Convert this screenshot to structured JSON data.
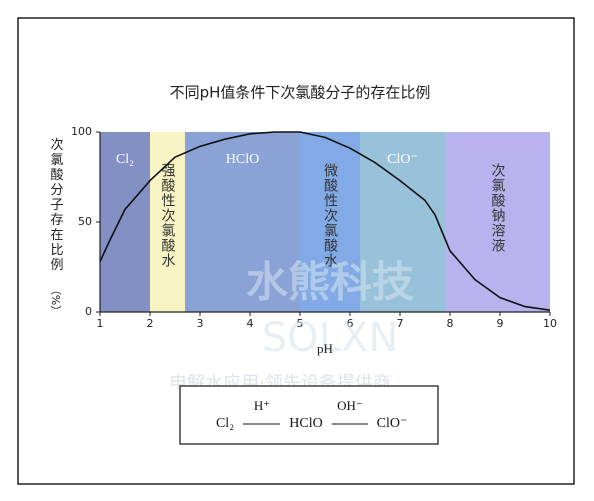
{
  "chart_data": {
    "type": "line",
    "title": "不同pH值条件下次氯酸分子的存在比例",
    "x_label": "pH",
    "y_label": "次氯酸分子存在比例",
    "y_unit": "（%）",
    "xlim": [
      1,
      10
    ],
    "xticks": [
      1,
      2,
      3,
      4,
      5,
      6,
      7,
      8,
      9,
      10
    ],
    "ylim": [
      0,
      100
    ],
    "yticks": [
      0,
      50,
      100
    ],
    "regions": [
      {
        "from": 1,
        "to": 2,
        "label": "Cl₂",
        "color": "#8290c4",
        "label_color": "#ffffff",
        "vertical": false
      },
      {
        "from": 2,
        "to": 2.7,
        "label": "强酸性次氯酸水",
        "color": "#f7f3c2",
        "label_color": "#333333",
        "vertical": true
      },
      {
        "from": 2.7,
        "to": 5,
        "label": "HClO",
        "color": "#8aa2d6",
        "label_color": "#ffffff",
        "vertical": false
      },
      {
        "from": 5,
        "to": 6.2,
        "label": "微酸性次氯酸水",
        "color": "#82aae6",
        "label_color": "#333333",
        "vertical": true
      },
      {
        "from": 6.2,
        "to": 7.9,
        "label": "ClO⁻",
        "color": "#98c2da",
        "label_color": "#ffffff",
        "vertical": false
      },
      {
        "from": 7.9,
        "to": 10,
        "label": "次氯酸钠溶液",
        "color": "#b8b3ee",
        "label_color": "#333333",
        "vertical": true
      }
    ],
    "series": [
      {
        "name": "HClO",
        "color": "#111111",
        "x": [
          1,
          1.2,
          1.5,
          2,
          2.5,
          3,
          3.5,
          4,
          4.5,
          5,
          5.5,
          6,
          6.5,
          7,
          7.5,
          7.7,
          8,
          8.5,
          9,
          9.5,
          10
        ],
        "values": [
          28,
          40,
          57,
          73,
          86,
          92,
          96,
          99,
          100,
          100,
          97,
          91,
          83,
          73,
          62,
          54,
          34,
          18,
          8,
          3,
          1
        ]
      }
    ],
    "equation": {
      "left": "Cl₂",
      "arrow1": "H⁺",
      "middle": "HClO",
      "arrow2": "OH⁻",
      "right": "ClO⁻"
    },
    "watermark": {
      "brand": "水熊科技",
      "latin": "SOLXN",
      "slogan": "电解水应用·领先设备提供商"
    }
  }
}
